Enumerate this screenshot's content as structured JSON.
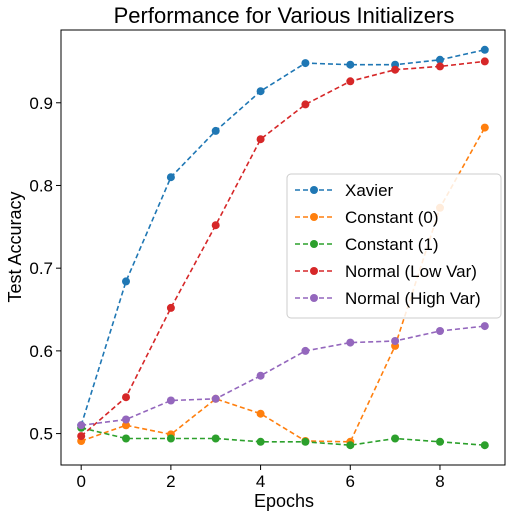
{
  "chart_data": {
    "type": "line",
    "title": "Performance for Various Initializers",
    "xlabel": "Epochs",
    "ylabel": "Test Accuracy",
    "xlim": [
      -0.45,
      9.45
    ],
    "ylim": [
      0.462,
      0.988
    ],
    "xticks": [
      0,
      2,
      4,
      6,
      8
    ],
    "xtick_labels": [
      "0",
      "2",
      "4",
      "6",
      "8"
    ],
    "yticks": [
      0.5,
      0.6,
      0.7,
      0.8,
      0.9
    ],
    "ytick_labels": [
      "0.5",
      "0.6",
      "0.7",
      "0.8",
      "0.9"
    ],
    "grid": false,
    "legend_position": "center-right",
    "x": [
      0,
      1,
      2,
      3,
      4,
      5,
      6,
      7,
      8,
      9
    ],
    "series": [
      {
        "name": "Xavier",
        "color": "#1f77b4",
        "values": [
          0.51,
          0.684,
          0.81,
          0.866,
          0.914,
          0.948,
          0.946,
          0.946,
          0.952,
          0.964
        ]
      },
      {
        "name": "Constant (0)",
        "color": "#ff7f0e",
        "values": [
          0.491,
          0.51,
          0.499,
          0.542,
          0.524,
          0.491,
          0.49,
          0.606,
          0.773,
          0.87
        ]
      },
      {
        "name": "Constant (1)",
        "color": "#2ca02c",
        "values": [
          0.507,
          0.494,
          0.494,
          0.494,
          0.49,
          0.49,
          0.486,
          0.494,
          0.49,
          0.486
        ]
      },
      {
        "name": "Normal (Low Var)",
        "color": "#d62728",
        "values": [
          0.497,
          0.544,
          0.652,
          0.752,
          0.856,
          0.898,
          0.926,
          0.94,
          0.944,
          0.95
        ]
      },
      {
        "name": "Normal (High Var)",
        "color": "#9467bd",
        "values": [
          0.51,
          0.517,
          0.54,
          0.542,
          0.57,
          0.6,
          0.61,
          0.612,
          0.624,
          0.63
        ]
      }
    ]
  }
}
